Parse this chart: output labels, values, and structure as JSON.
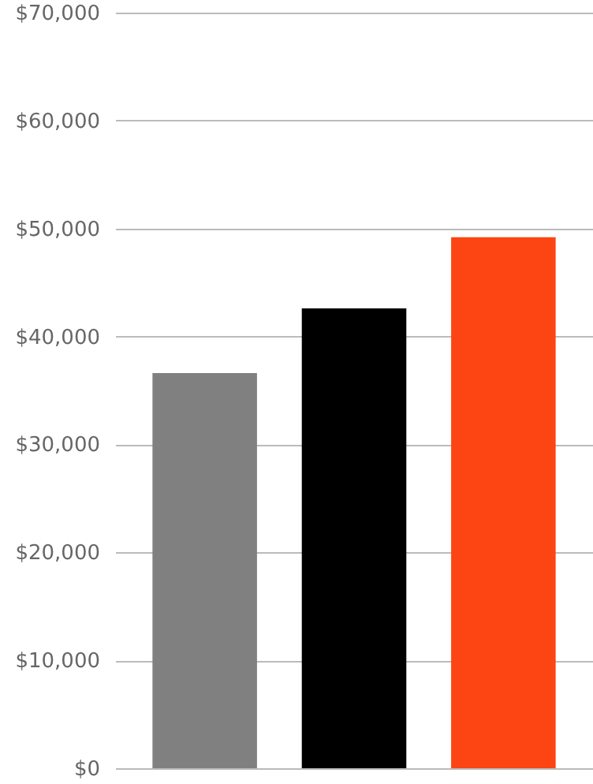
{
  "chart_data": {
    "type": "bar",
    "categories": [
      null,
      null,
      null
    ],
    "values": [
      36600,
      42600,
      49200
    ],
    "colors": [
      "#808080",
      "#000000",
      "#fc4512"
    ],
    "ylim": [
      0,
      70000
    ],
    "yticks": [
      {
        "value": 0,
        "label": "$0"
      },
      {
        "value": 10000,
        "label": "$10,000"
      },
      {
        "value": 20000,
        "label": "$20,000"
      },
      {
        "value": 30000,
        "label": "$30,000"
      },
      {
        "value": 40000,
        "label": "$40,000"
      },
      {
        "value": 50000,
        "label": "$50,000"
      },
      {
        "value": 60000,
        "label": "$60,000"
      },
      {
        "value": 70000,
        "label": "$70,000"
      }
    ],
    "grid": "y",
    "tick_labels": "y"
  }
}
